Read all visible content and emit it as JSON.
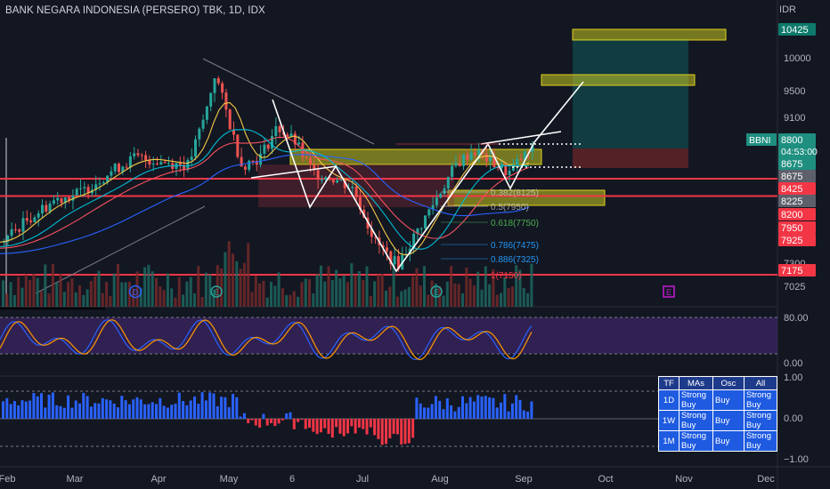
{
  "header": {
    "title": "BANK NEGARA INDONESIA (PERSERO) TBK, 1D, IDX",
    "currency": "IDR"
  },
  "colors": {
    "background": "#131722",
    "up": "#26a69a",
    "down": "#ef5350",
    "resistance_line": "#f23645",
    "zone_yellow": "#c8c820",
    "target_zone": "#0e6b6b",
    "oscillator_band": "#4a2a7a",
    "histogram_positive": "#2962ff",
    "histogram_negative": "#f23645",
    "table_bg": "#1f5be0"
  },
  "chart_data": {
    "type": "candlestick",
    "symbol": "BBNI",
    "interval": "1D",
    "x_labels": [
      "Feb",
      "Mar",
      "Apr",
      "May",
      "6",
      "Jul",
      "Aug",
      "Sep",
      "Oct",
      "Nov",
      "Dec"
    ],
    "price_ticks": [
      "10000",
      "9500",
      "9100",
      "7300",
      "7025"
    ],
    "price_range": [
      6900,
      10700
    ],
    "price_tags": [
      {
        "label": "10425",
        "value": 10425,
        "kind": "target"
      },
      {
        "label": "8800",
        "value": 8800,
        "kind": "last",
        "symbol": "BBNI",
        "countdown": "04:53:00"
      },
      {
        "label": "8675",
        "value": 8675,
        "kind": "green"
      },
      {
        "label": "8675",
        "value": 8675,
        "kind": "grey"
      },
      {
        "label": "8425",
        "value": 8425,
        "kind": "red"
      },
      {
        "label": "8225",
        "value": 8225,
        "kind": "grey"
      },
      {
        "label": "8200",
        "value": 8200,
        "kind": "red"
      },
      {
        "label": "7950",
        "value": 7950,
        "kind": "red"
      },
      {
        "label": "7925",
        "value": 7925,
        "kind": "red"
      },
      {
        "label": "7175",
        "value": 7175,
        "kind": "red"
      }
    ],
    "fibonacci": [
      {
        "ratio": "0.382",
        "price": "8125",
        "label": "0.382(8125)"
      },
      {
        "ratio": "0.5",
        "price": "7950",
        "label": "0.5(7950)"
      },
      {
        "ratio": "0.618",
        "price": "7750",
        "label": "0.618(7750)"
      },
      {
        "ratio": "0.786",
        "price": "7475",
        "label": "0.786(7475)"
      },
      {
        "ratio": "0.886",
        "price": "7325",
        "label": "0.886(7325)"
      },
      {
        "ratio": "1",
        "price": "7150",
        "label": "1(7150)"
      }
    ],
    "markers": [
      "D",
      "E",
      "E",
      "E"
    ],
    "oscillator": {
      "ticks": [
        "80.00",
        "0.00"
      ],
      "range": [
        0,
        100
      ]
    },
    "histogram": {
      "ticks": [
        "1.00",
        "0.00",
        "−1.00"
      ],
      "range": [
        -1,
        1
      ]
    }
  },
  "signals_table": {
    "headers": [
      "TF",
      "MAs",
      "Osc",
      "All"
    ],
    "rows": [
      {
        "tf": "1D",
        "mas": "Strong Buy",
        "osc": "Buy",
        "all": "Strong Buy"
      },
      {
        "tf": "1W",
        "mas": "Strong Buy",
        "osc": "Buy",
        "all": "Strong Buy"
      },
      {
        "tf": "1M",
        "mas": "Strong Buy",
        "osc": "Buy",
        "all": "Strong Buy"
      }
    ]
  }
}
